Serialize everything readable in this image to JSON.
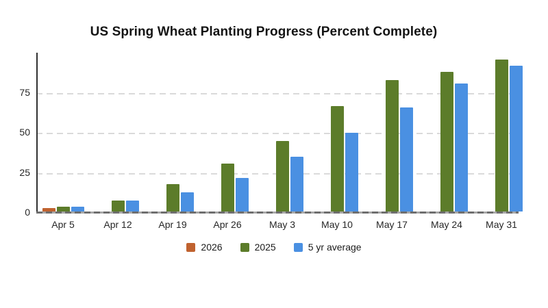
{
  "chart_data": {
    "type": "bar",
    "title": "US Spring Wheat Planting Progress (Percent Complete)",
    "categories": [
      "Apr 5",
      "Apr 12",
      "Apr 19",
      "Apr 26",
      "May 3",
      "May 10",
      "May 17",
      "May 24",
      "May 31"
    ],
    "series": [
      {
        "name": "2026",
        "color": "#c0622f",
        "values": [
          2,
          null,
          null,
          null,
          null,
          null,
          null,
          null,
          null
        ]
      },
      {
        "name": "2025",
        "color": "#5c7c2a",
        "values": [
          3,
          7,
          17,
          30,
          44,
          66,
          82,
          87,
          95
        ]
      },
      {
        "name": "5 yr average",
        "color": "#4a90e2",
        "values": [
          3,
          7,
          12,
          21,
          34,
          49,
          65,
          80,
          91
        ]
      }
    ],
    "xlabel": "",
    "ylabel": "",
    "ylim": [
      0,
      98
    ],
    "yticks": [
      0,
      25,
      50,
      75
    ],
    "grid": "horizontal-dashed",
    "legend_position": "bottom",
    "colors": {
      "gridline": "#dadada",
      "axis": "#303030",
      "zero_line": "#6e6e6e",
      "text": "#1f1f1f",
      "background": "#ffffff"
    }
  }
}
